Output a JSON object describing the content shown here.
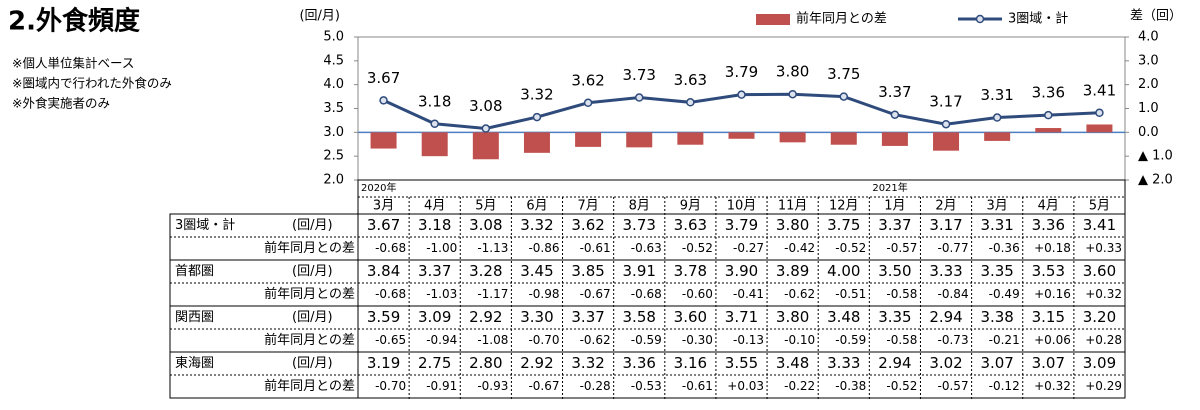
{
  "header": {
    "title": "2.外食頻度",
    "notes": [
      "※個人単位集計ベース",
      "※圏域内で行われた外食のみ",
      "※外食実施者のみ"
    ]
  },
  "chart_data": {
    "type": "combo",
    "ylabel": "(回/月)",
    "y2label": "差（回）",
    "categories": [
      "3月",
      "4月",
      "5月",
      "6月",
      "7月",
      "8月",
      "9月",
      "10月",
      "11月",
      "12月",
      "1月",
      "2月",
      "3月",
      "4月",
      "5月"
    ],
    "year_labels": [
      "2020年",
      null,
      null,
      null,
      null,
      null,
      null,
      null,
      null,
      null,
      "2021年",
      null,
      null,
      null,
      null
    ],
    "ylim": [
      2,
      5
    ],
    "yticks": [
      {
        "value": 2,
        "label": "2.0"
      },
      {
        "value": 2.5,
        "label": "2.5"
      },
      {
        "value": 3,
        "label": "3.0"
      },
      {
        "value": 3.5,
        "label": "3.5"
      },
      {
        "value": 4,
        "label": "4.0"
      },
      {
        "value": 4.5,
        "label": "4.5"
      },
      {
        "value": 5,
        "label": "5.0"
      }
    ],
    "y2lim": [
      -2,
      4
    ],
    "y2ticks": [
      {
        "value": 4,
        "label": "4.0"
      },
      {
        "value": 3,
        "label": "3.0"
      },
      {
        "value": 2,
        "label": "2.0"
      },
      {
        "value": 1,
        "label": "1.0"
      },
      {
        "value": 0,
        "label": "0.0"
      },
      {
        "value": -1,
        "label": "▲ 1.0"
      },
      {
        "value": -2,
        "label": "▲ 2.0"
      }
    ],
    "legend": "top",
    "series": [
      {
        "name": "前年同月との差",
        "type": "bar",
        "axis": "y2",
        "color": "#c0504d",
        "values": [
          -0.68,
          -1.0,
          -1.13,
          -0.86,
          -0.61,
          -0.63,
          -0.52,
          -0.27,
          -0.42,
          -0.52,
          -0.57,
          -0.77,
          -0.36,
          0.18,
          0.33
        ]
      },
      {
        "name": "3圏域・計",
        "type": "line",
        "color": "#2f4b7c",
        "values": [
          3.67,
          3.18,
          3.08,
          3.32,
          3.62,
          3.73,
          3.63,
          3.79,
          3.8,
          3.75,
          3.37,
          3.17,
          3.31,
          3.36,
          3.41
        ],
        "value_labels": [
          "3.67",
          "3.18",
          "3.08",
          "3.32",
          "3.62",
          "3.73",
          "3.63",
          "3.79",
          "3.80",
          "3.75",
          "3.37",
          "3.17",
          "3.31",
          "3.36",
          "3.41"
        ]
      }
    ]
  },
  "table": {
    "rows": [
      {
        "name": "3圏域・計",
        "unit": "(回/月)",
        "values": [
          "3.67",
          "3.18",
          "3.08",
          "3.32",
          "3.62",
          "3.73",
          "3.63",
          "3.79",
          "3.80",
          "3.75",
          "3.37",
          "3.17",
          "3.31",
          "3.36",
          "3.41"
        ],
        "diff_label": "前年同月との差",
        "diffs": [
          "-0.68",
          "-1.00",
          "-1.13",
          "-0.86",
          "-0.61",
          "-0.63",
          "-0.52",
          "-0.27",
          "-0.42",
          "-0.52",
          "-0.57",
          "-0.77",
          "-0.36",
          "+0.18",
          "+0.33"
        ]
      },
      {
        "name": "首都圏",
        "unit": "(回/月)",
        "values": [
          "3.84",
          "3.37",
          "3.28",
          "3.45",
          "3.85",
          "3.91",
          "3.78",
          "3.90",
          "3.89",
          "4.00",
          "3.50",
          "3.33",
          "3.35",
          "3.53",
          "3.60"
        ],
        "diff_label": "前年同月との差",
        "diffs": [
          "-0.68",
          "-1.03",
          "-1.17",
          "-0.98",
          "-0.67",
          "-0.68",
          "-0.60",
          "-0.41",
          "-0.62",
          "-0.51",
          "-0.58",
          "-0.84",
          "-0.49",
          "+0.16",
          "+0.32"
        ]
      },
      {
        "name": "関西圏",
        "unit": "(回/月)",
        "values": [
          "3.59",
          "3.09",
          "2.92",
          "3.30",
          "3.37",
          "3.58",
          "3.60",
          "3.71",
          "3.80",
          "3.48",
          "3.35",
          "2.94",
          "3.38",
          "3.15",
          "3.20"
        ],
        "diff_label": "前年同月との差",
        "diffs": [
          "-0.65",
          "-0.94",
          "-1.08",
          "-0.70",
          "-0.62",
          "-0.59",
          "-0.30",
          "-0.13",
          "-0.10",
          "-0.59",
          "-0.58",
          "-0.73",
          "-0.21",
          "+0.06",
          "+0.28"
        ]
      },
      {
        "name": "東海圏",
        "unit": "(回/月)",
        "values": [
          "3.19",
          "2.75",
          "2.80",
          "2.92",
          "3.32",
          "3.36",
          "3.16",
          "3.55",
          "3.48",
          "3.33",
          "2.94",
          "3.02",
          "3.07",
          "3.07",
          "3.09"
        ],
        "diff_label": "前年同月との差",
        "diffs": [
          "-0.70",
          "-0.91",
          "-0.93",
          "-0.67",
          "-0.28",
          "-0.53",
          "-0.61",
          "+0.03",
          "-0.22",
          "-0.38",
          "-0.52",
          "-0.57",
          "-0.12",
          "+0.32",
          "+0.29"
        ]
      }
    ]
  }
}
